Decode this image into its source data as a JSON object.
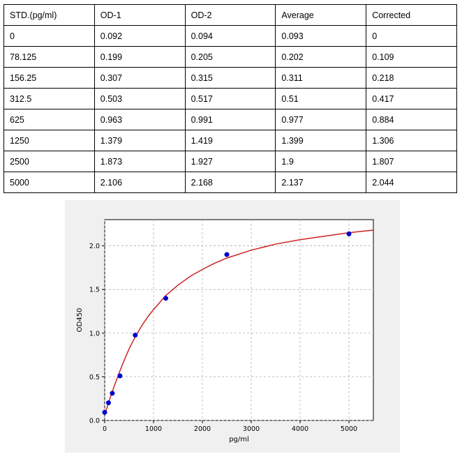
{
  "table": {
    "headers": [
      "STD.(pg/ml)",
      "OD-1",
      "OD-2",
      "Average",
      "Corrected"
    ],
    "rows": [
      [
        "0",
        "0.092",
        "0.094",
        "0.093",
        "0"
      ],
      [
        "78.125",
        "0.199",
        "0.205",
        "0.202",
        "0.109"
      ],
      [
        "156.25",
        "0.307",
        "0.315",
        "0.311",
        "0.218"
      ],
      [
        "312.5",
        "0.503",
        "0.517",
        "0.51",
        "0.417"
      ],
      [
        "625",
        "0.963",
        "0.991",
        "0.977",
        "0.884"
      ],
      [
        "1250",
        "1.379",
        "1.419",
        "1.399",
        "1.306"
      ],
      [
        "2500",
        "1.873",
        "1.927",
        "1.9",
        "1.807"
      ],
      [
        "5000",
        "2.106",
        "2.168",
        "2.137",
        "2.044"
      ]
    ]
  },
  "chart_data": {
    "type": "scatter",
    "title": "",
    "xlabel": "pg/ml",
    "ylabel": "OD450",
    "xlim": [
      0,
      5500
    ],
    "ylim": [
      0,
      2.3
    ],
    "xticks": [
      0,
      1000,
      2000,
      3000,
      4000,
      5000
    ],
    "yticks": [
      0.0,
      0.5,
      1.0,
      1.5,
      2.0
    ],
    "xtick_labels": [
      "0",
      "1000",
      "2000",
      "3000",
      "4000",
      "5000"
    ],
    "ytick_labels": [
      "0.0",
      "0.5",
      "1.0",
      "1.5",
      "2.0"
    ],
    "grid": true,
    "points": {
      "x": [
        0,
        78.125,
        156.25,
        312.5,
        625,
        1250,
        2500,
        5000
      ],
      "y": [
        0.093,
        0.202,
        0.311,
        0.51,
        0.977,
        1.399,
        1.9,
        2.137
      ],
      "color": "#0000cc"
    },
    "fit_curve": {
      "color": "#cc2222",
      "x": [
        0,
        50,
        100,
        150,
        200,
        300,
        400,
        500,
        600,
        700,
        800,
        900,
        1000,
        1250,
        1500,
        1750,
        2000,
        2250,
        2500,
        3000,
        3500,
        4000,
        4500,
        5000,
        5500
      ],
      "y": [
        0.07,
        0.15,
        0.24,
        0.32,
        0.4,
        0.55,
        0.69,
        0.82,
        0.93,
        1.03,
        1.12,
        1.2,
        1.27,
        1.43,
        1.55,
        1.65,
        1.73,
        1.8,
        1.86,
        1.95,
        2.02,
        2.07,
        2.11,
        2.15,
        2.18
      ]
    }
  }
}
